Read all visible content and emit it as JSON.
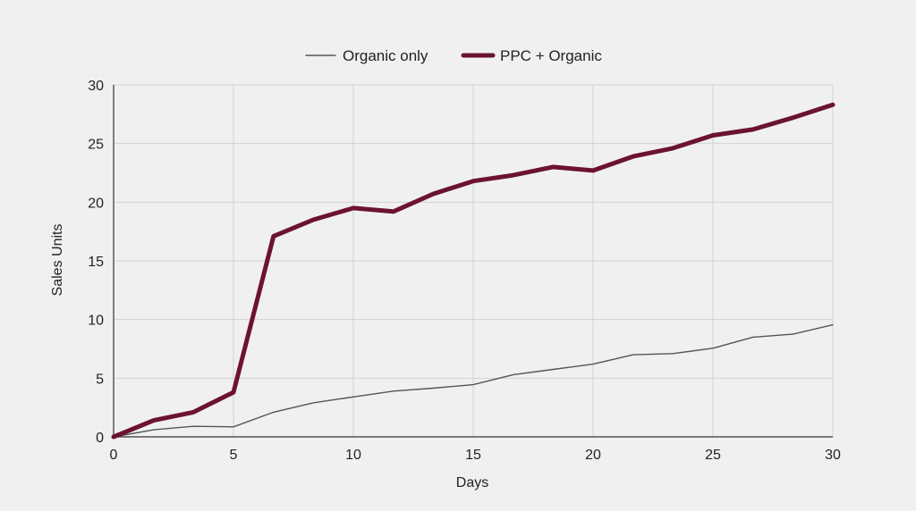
{
  "chart_data": {
    "type": "line",
    "title": "",
    "xlabel": "Days",
    "ylabel": "Sales Units",
    "xlim": [
      0,
      30
    ],
    "ylim": [
      0,
      30
    ],
    "xticks": [
      0,
      5,
      10,
      15,
      20,
      25,
      30
    ],
    "yticks": [
      0,
      5,
      10,
      15,
      20,
      25,
      30
    ],
    "grid": true,
    "legend_position": "top-center",
    "series": [
      {
        "name": "Organic only",
        "color": "#555555",
        "x": [
          0,
          1.67,
          3.33,
          5,
          6.67,
          8.33,
          10,
          11.67,
          13.33,
          15,
          16.67,
          18.33,
          20,
          21.67,
          23.33,
          25,
          26.67,
          28.33,
          30
        ],
        "y": [
          0,
          0.6,
          0.9,
          0.85,
          2.1,
          2.9,
          3.4,
          3.9,
          4.15,
          4.45,
          5.3,
          5.75,
          6.2,
          7.0,
          7.1,
          7.55,
          8.5,
          8.75,
          9.55
        ]
      },
      {
        "name": "PPC + Organic",
        "color": "#6b1330",
        "x": [
          0,
          1.67,
          3.33,
          5,
          6.67,
          8.33,
          10,
          11.67,
          13.33,
          15,
          16.67,
          18.33,
          20,
          21.67,
          23.33,
          25,
          26.67,
          28.33,
          30
        ],
        "y": [
          0,
          1.4,
          2.1,
          3.8,
          17.1,
          18.5,
          19.5,
          19.2,
          20.7,
          21.8,
          22.3,
          23.0,
          22.7,
          23.9,
          24.6,
          25.7,
          26.2,
          27.2,
          28.3
        ]
      }
    ]
  }
}
